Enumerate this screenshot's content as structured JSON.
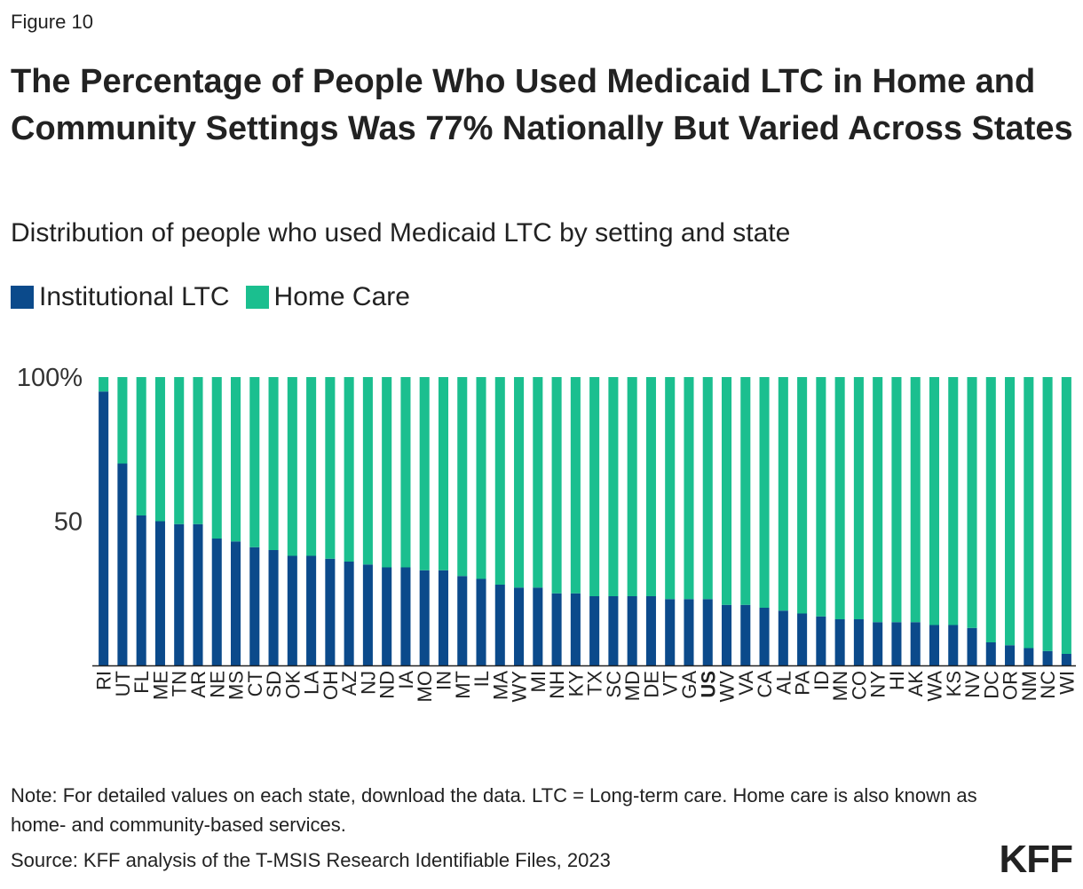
{
  "figure_label": "Figure 10",
  "title": "The Percentage of People Who Used Medicaid LTC in Home and Community Settings Was 77% Nationally But Varied Across States",
  "subtitle": "Distribution of people who used Medicaid LTC by setting and state",
  "legend": [
    {
      "label": "Institutional LTC",
      "color": "#0b4a8b"
    },
    {
      "label": "Home Care",
      "color": "#1bbf8f"
    }
  ],
  "note": "Note: For detailed values on each state, download the data. LTC = Long-term care. Home care is also known as home- and community-based services.",
  "source": "Source: KFF analysis of the T-MSIS Research Identifiable Files, 2023",
  "logo": "KFF",
  "chart_data": {
    "type": "bar",
    "stacked": true,
    "title": "Distribution of people who used Medicaid LTC by setting and state",
    "xlabel": "",
    "ylabel": "",
    "ylim": [
      0,
      100
    ],
    "yticks": [
      {
        "value": 100,
        "label": "100%"
      },
      {
        "value": 50,
        "label": "50"
      }
    ],
    "highlight_category": "US",
    "categories": [
      "RI",
      "UT",
      "FL",
      "ME",
      "TN",
      "AR",
      "NE",
      "MS",
      "CT",
      "SD",
      "OK",
      "LA",
      "OH",
      "AZ",
      "NJ",
      "ND",
      "IA",
      "MO",
      "IN",
      "MT",
      "IL",
      "MA",
      "WY",
      "MI",
      "NH",
      "KY",
      "TX",
      "SC",
      "MD",
      "DE",
      "VT",
      "GA",
      "US",
      "WV",
      "VA",
      "CA",
      "AL",
      "PA",
      "ID",
      "MN",
      "CO",
      "NY",
      "HI",
      "AK",
      "WA",
      "KS",
      "NV",
      "DC",
      "OR",
      "NM",
      "NC",
      "WI"
    ],
    "series": [
      {
        "name": "Institutional LTC",
        "color": "#0b4a8b",
        "values": [
          95,
          70,
          52,
          50,
          49,
          49,
          44,
          43,
          41,
          40,
          38,
          38,
          37,
          36,
          35,
          34,
          34,
          33,
          33,
          31,
          30,
          28,
          27,
          27,
          25,
          25,
          24,
          24,
          24,
          24,
          23,
          23,
          23,
          21,
          21,
          20,
          19,
          18,
          17,
          16,
          16,
          15,
          15,
          15,
          14,
          14,
          13,
          8,
          7,
          6,
          5,
          4
        ]
      },
      {
        "name": "Home Care",
        "color": "#1bbf8f",
        "values": [
          5,
          30,
          48,
          50,
          51,
          51,
          56,
          57,
          59,
          60,
          62,
          62,
          63,
          64,
          65,
          66,
          66,
          67,
          67,
          69,
          70,
          72,
          73,
          73,
          75,
          75,
          76,
          76,
          76,
          76,
          77,
          77,
          77,
          79,
          79,
          80,
          81,
          82,
          83,
          84,
          84,
          85,
          85,
          85,
          86,
          86,
          87,
          92,
          93,
          94,
          95,
          96
        ]
      }
    ]
  }
}
